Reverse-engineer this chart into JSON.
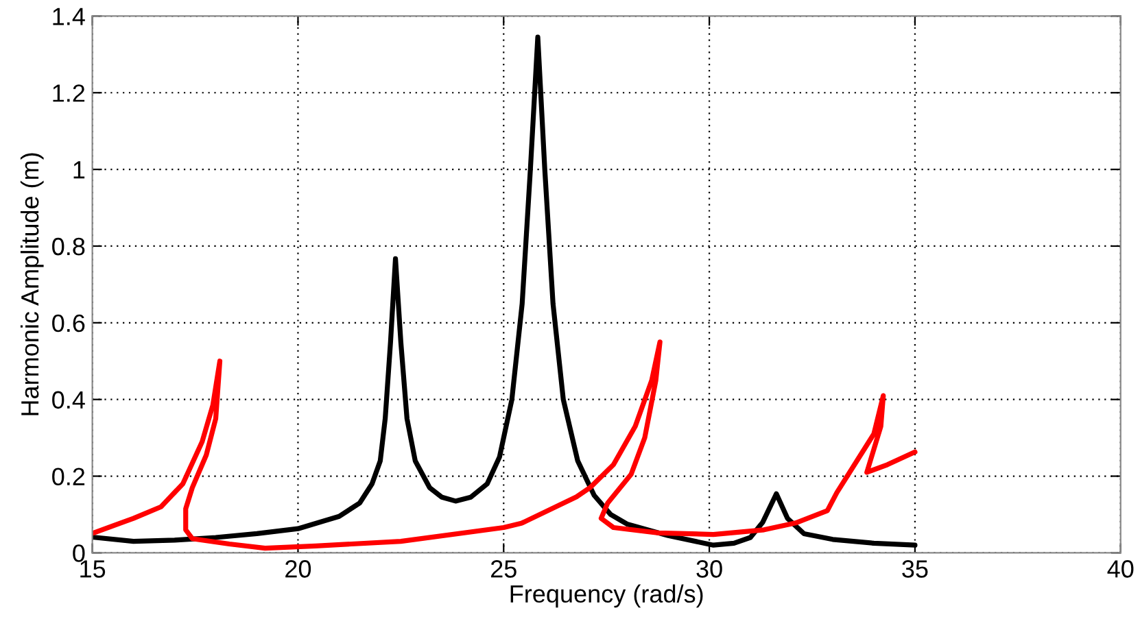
{
  "chart_data": {
    "type": "line",
    "xlabel": "Frequency (rad/s)",
    "ylabel": "Harmonic Amplitude (m)",
    "xlim": [
      15,
      40
    ],
    "ylim": [
      0,
      1.4
    ],
    "xticks": [
      15,
      20,
      25,
      30,
      35,
      40
    ],
    "yticks": [
      0,
      0.2,
      0.4,
      0.6,
      0.8,
      1,
      1.2,
      1.4
    ],
    "grid": true,
    "line_style": "solid",
    "marker": "none",
    "series": [
      {
        "color": "#000000",
        "x": [
          15,
          16,
          17,
          18,
          19,
          20,
          21,
          21.5,
          21.8,
          22.0,
          22.12,
          22.25,
          22.37,
          22.5,
          22.65,
          22.85,
          23.2,
          23.5,
          23.83,
          24.2,
          24.6,
          24.9,
          25.2,
          25.45,
          25.65,
          25.83,
          26.0,
          26.2,
          26.45,
          26.8,
          27.2,
          27.6,
          28,
          29,
          30.1,
          30.6,
          31.0,
          31.3,
          31.63,
          31.9,
          32.3,
          33,
          34,
          35
        ],
        "values": [
          0.041,
          0.03,
          0.033,
          0.04,
          0.05,
          0.063,
          0.095,
          0.13,
          0.18,
          0.24,
          0.35,
          0.55,
          0.767,
          0.55,
          0.35,
          0.24,
          0.17,
          0.145,
          0.135,
          0.145,
          0.18,
          0.25,
          0.4,
          0.65,
          1.0,
          1.345,
          1.0,
          0.65,
          0.4,
          0.24,
          0.15,
          0.1,
          0.075,
          0.045,
          0.02,
          0.025,
          0.04,
          0.08,
          0.154,
          0.09,
          0.05,
          0.035,
          0.025,
          0.02
        ]
      },
      {
        "color": "#ff0000",
        "x": [
          15.03,
          16.0,
          16.67,
          17.2,
          17.67,
          17.93,
          18.1,
          18.0,
          17.77,
          17.43,
          17.27,
          17.27,
          17.43,
          18.33,
          19.2,
          20.43,
          22.5,
          25,
          25.43,
          26.77,
          27.1,
          27.67,
          28.2,
          28.6,
          28.8,
          28.7,
          28.43,
          28.1,
          27.53,
          27.37,
          27.67,
          28.77,
          30.1,
          31.33,
          32.1,
          32.87,
          33.1,
          33.53,
          34.0,
          34.23,
          34.17,
          33.83,
          34.33,
          35.0
        ],
        "values": [
          0.052,
          0.09,
          0.12,
          0.18,
          0.29,
          0.385,
          0.5,
          0.35,
          0.255,
          0.17,
          0.115,
          0.06,
          0.037,
          0.023,
          0.012,
          0.018,
          0.03,
          0.066,
          0.077,
          0.146,
          0.17,
          0.23,
          0.33,
          0.45,
          0.55,
          0.45,
          0.3,
          0.205,
          0.13,
          0.09,
          0.066,
          0.052,
          0.048,
          0.06,
          0.078,
          0.11,
          0.157,
          0.23,
          0.31,
          0.41,
          0.33,
          0.21,
          0.23,
          0.263
        ]
      }
    ]
  }
}
